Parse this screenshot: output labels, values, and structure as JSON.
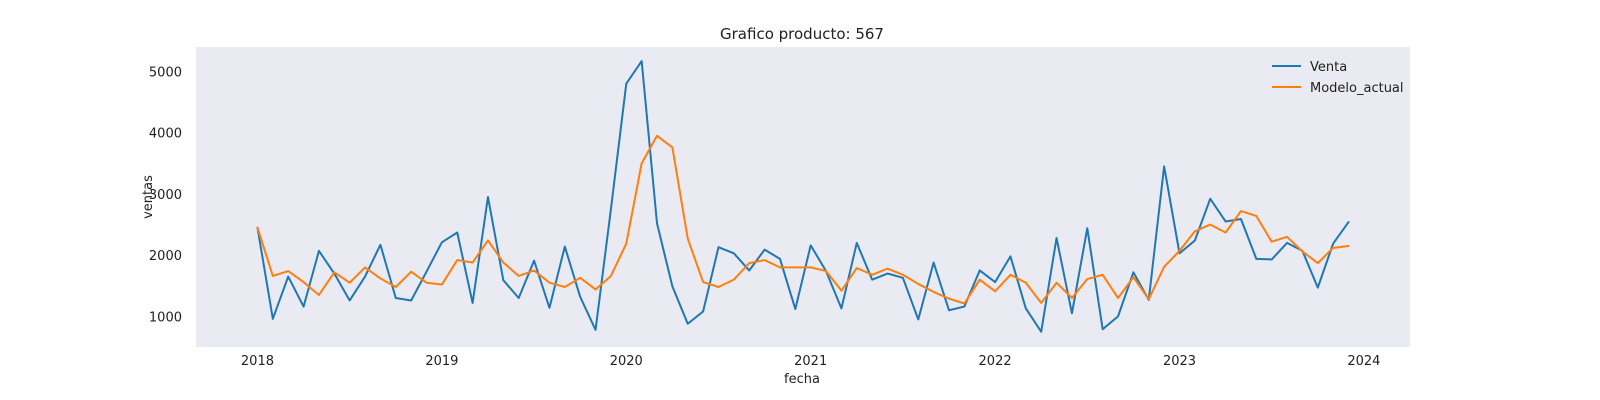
{
  "chart_data": {
    "type": "line",
    "title": "Grafico producto: 567",
    "xlabel": "fecha",
    "ylabel": "ventas",
    "x_ticks": [
      "2018",
      "2019",
      "2020",
      "2021",
      "2022",
      "2023",
      "2024"
    ],
    "y_ticks": [
      1000,
      2000,
      3000,
      4000,
      5000
    ],
    "xlim": [
      "2017-09",
      "2024-04"
    ],
    "ylim": [
      500,
      5400
    ],
    "grid": false,
    "legend_position": "top-right",
    "x": [
      "2018-01",
      "2018-02",
      "2018-03",
      "2018-04",
      "2018-05",
      "2018-06",
      "2018-07",
      "2018-08",
      "2018-09",
      "2018-10",
      "2018-11",
      "2018-12",
      "2019-01",
      "2019-02",
      "2019-03",
      "2019-04",
      "2019-05",
      "2019-06",
      "2019-07",
      "2019-08",
      "2019-09",
      "2019-10",
      "2019-11",
      "2019-12",
      "2020-01",
      "2020-02",
      "2020-03",
      "2020-04",
      "2020-05",
      "2020-06",
      "2020-07",
      "2020-08",
      "2020-09",
      "2020-10",
      "2020-11",
      "2020-12",
      "2021-01",
      "2021-02",
      "2021-03",
      "2021-04",
      "2021-05",
      "2021-06",
      "2021-07",
      "2021-08",
      "2021-09",
      "2021-10",
      "2021-11",
      "2021-12",
      "2022-01",
      "2022-02",
      "2022-03",
      "2022-04",
      "2022-05",
      "2022-06",
      "2022-07",
      "2022-08",
      "2022-09",
      "2022-10",
      "2022-11",
      "2022-12",
      "2023-01",
      "2023-02",
      "2023-03",
      "2023-04",
      "2023-05",
      "2023-06",
      "2023-07",
      "2023-08",
      "2023-09",
      "2023-10",
      "2023-11",
      "2023-12"
    ],
    "series": [
      {
        "name": "Venta",
        "color": "#1f77b4",
        "values": [
          2450,
          960,
          1650,
          1160,
          2070,
          1700,
          1260,
          1650,
          2170,
          1300,
          1260,
          1730,
          2210,
          2370,
          1220,
          2950,
          1590,
          1300,
          1910,
          1140,
          2140,
          1320,
          780,
          2750,
          4800,
          5170,
          2520,
          1490,
          880,
          1080,
          2130,
          2030,
          1750,
          2090,
          1940,
          1120,
          2160,
          1740,
          1130,
          2200,
          1600,
          1700,
          1630,
          950,
          1880,
          1100,
          1160,
          1750,
          1560,
          1980,
          1130,
          750,
          2280,
          1050,
          2440,
          790,
          1000,
          1720,
          1270,
          3450,
          2030,
          2240,
          2920,
          2550,
          2590,
          1940,
          1930,
          2200,
          2070,
          1470,
          2190,
          2540
        ]
      },
      {
        "name": "Modelo_actual",
        "color": "#ff7f0e",
        "values": [
          2450,
          1660,
          1740,
          1560,
          1350,
          1720,
          1550,
          1800,
          1620,
          1480,
          1730,
          1550,
          1520,
          1920,
          1880,
          2240,
          1880,
          1660,
          1750,
          1550,
          1480,
          1630,
          1440,
          1660,
          2190,
          3500,
          3950,
          3760,
          2270,
          1560,
          1480,
          1600,
          1870,
          1920,
          1800,
          1800,
          1800,
          1740,
          1420,
          1790,
          1680,
          1780,
          1680,
          1530,
          1400,
          1290,
          1210,
          1600,
          1410,
          1680,
          1550,
          1220,
          1550,
          1300,
          1610,
          1680,
          1300,
          1640,
          1280,
          1810,
          2070,
          2390,
          2500,
          2370,
          2720,
          2640,
          2220,
          2300,
          2060,
          1870,
          2120,
          2150
        ]
      }
    ]
  }
}
